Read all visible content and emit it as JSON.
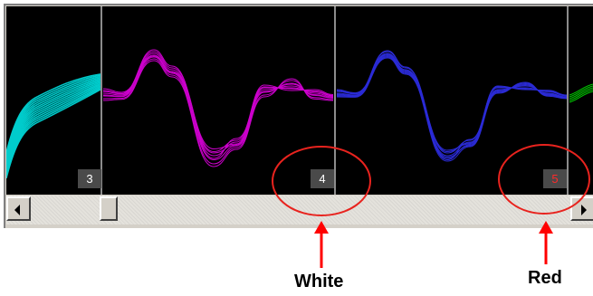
{
  "channels": [
    {
      "number": "3",
      "number_color": "#ffffff",
      "color": "#00cccc"
    },
    {
      "number": "4",
      "number_color": "#ffffff",
      "color": "#cc00cc"
    },
    {
      "number": "",
      "number_color": "#ffffff",
      "color": "#2b2bd6"
    },
    {
      "number": "5",
      "number_color": "#ff2a2a",
      "color": "#00cc00"
    }
  ],
  "colors": {
    "background": "#000000",
    "divider": "#8c8c8c",
    "highlight_ellipse": "#e8231e",
    "callout_arrow": "#ff0000"
  },
  "scrollbar": {
    "left_button_icon": "arrow-left-icon",
    "right_button_icon": "arrow-right-icon"
  },
  "callouts": [
    {
      "label": "White"
    },
    {
      "label": "Red"
    }
  ]
}
